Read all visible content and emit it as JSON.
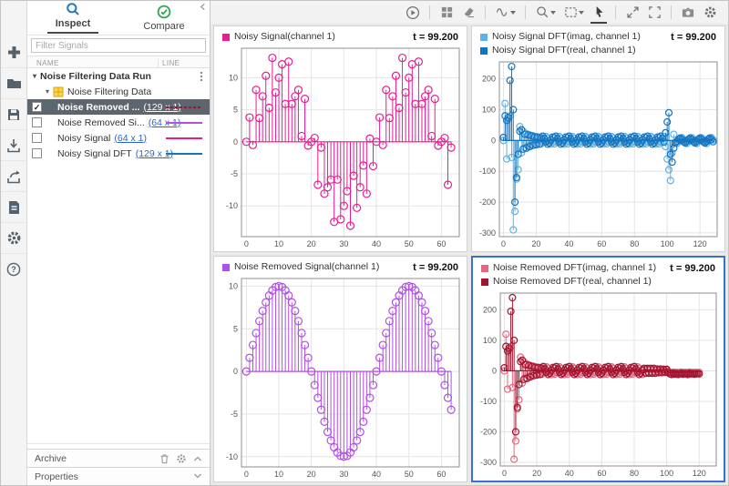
{
  "left_strip": {
    "icons": [
      "new",
      "open-folder",
      "save",
      "import",
      "export",
      "create-report",
      "preferences",
      "help"
    ]
  },
  "sidebar": {
    "tabs": [
      {
        "label": "Inspect",
        "icon": "magnifier",
        "active": true
      },
      {
        "label": "Compare",
        "icon": "check-circle",
        "active": false
      }
    ],
    "collapse_icon": "chevron-left",
    "filter_placeholder": "Filter Signals",
    "columns": [
      "NAME",
      "LINE"
    ],
    "run_label": "Noise Filtering Data Run",
    "group_label": "Noise Filtering Data",
    "signals": [
      {
        "name": "Noise Removed ...",
        "dims": "(129 x 1)",
        "check": "✓",
        "checked": true,
        "selected": true,
        "color": "#A2142F",
        "line_style": "dashed"
      },
      {
        "name": "Noise Removed Si...",
        "dims": "(64 x 1)",
        "check": "",
        "checked": false,
        "selected": false,
        "color": "#B24FE6",
        "line_style": "solid"
      },
      {
        "name": "Noisy Signal",
        "dims": "(64 x 1)",
        "check": "",
        "checked": false,
        "selected": false,
        "color": "#E81D92",
        "line_style": "solid"
      },
      {
        "name": "Noisy Signal DFT",
        "dims": "(129 x 1)",
        "check": "",
        "checked": false,
        "selected": false,
        "color": "#1674BE",
        "line_style": "solid"
      }
    ],
    "archive_label": "Archive",
    "archive_icons": [
      "trash",
      "gear",
      "chevron-up"
    ],
    "properties_label": "Properties",
    "properties_icon": "chevron-down"
  },
  "toolbar": {
    "icons": [
      "playback",
      "layout-grid",
      "clear-plots",
      "signal-style",
      "zoom",
      "fit-to-view",
      "pointer-tool",
      "pan-expand",
      "fullscreen",
      "snapshot-camera",
      "settings-gear"
    ],
    "active_icon": "pointer-tool"
  },
  "panels": [
    {
      "legend": [
        {
          "label": "Noisy Signal(channel 1)",
          "color": "#E81D92"
        }
      ],
      "t_label": "t = 99.200",
      "selected": false
    },
    {
      "legend": [
        {
          "label": "Noisy Signal DFT(imag, channel 1)",
          "color": "#5FB2E6"
        },
        {
          "label": "Noisy Signal DFT(real, channel 1)",
          "color": "#1674BE"
        }
      ],
      "t_label": "t = 99.200",
      "selected": false
    },
    {
      "legend": [
        {
          "label": "Noise Removed Signal(channel 1)",
          "color": "#B24FE6"
        }
      ],
      "t_label": "t = 99.200",
      "selected": false
    },
    {
      "legend": [
        {
          "label": "Noise Removed DFT(imag, channel 1)",
          "color": "#E16A80"
        },
        {
          "label": "Noise Removed DFT(real, channel 1)",
          "color": "#A2142F"
        }
      ],
      "t_label": "t = 99.200",
      "selected": true
    }
  ],
  "chart_data": [
    {
      "type": "stem",
      "svg_id": "plot-0",
      "title": "Noisy Signal(channel 1)",
      "x_range": [
        -1.5,
        65.5
      ],
      "y_range": [
        -14.8,
        14.6
      ],
      "x_ticks": [
        0,
        10,
        20,
        30,
        40,
        50,
        60
      ],
      "y_ticks": [
        -10,
        -5,
        0,
        5,
        10
      ],
      "marker_r": 4.0,
      "grid": true,
      "series": [
        {
          "name": "Noisy Signal(channel 1)",
          "color": "#E81D92",
          "values": [
            0,
            3.8,
            -0.5,
            8.1,
            3.7,
            7.1,
            10.3,
            5.3,
            13.1,
            7.7,
            10,
            12.1,
            5.9,
            12.5,
            5.9,
            7.1,
            8.1,
            0.9,
            6.7,
            -0.6,
            0,
            0.6,
            -6.7,
            -0.9,
            -8.1,
            -7.1,
            -5.9,
            -12.5,
            -5.9,
            -12.1,
            -10,
            -7.7,
            -13.1,
            -5.3,
            -10.3,
            -7.1,
            -3.7,
            -8.1,
            0.5,
            -3.8,
            0,
            3.8,
            -0.5,
            8.1,
            3.7,
            7.1,
            10.3,
            5.3,
            13.1,
            7.7,
            10,
            12.1,
            5.9,
            12.5,
            5.9,
            7.1,
            8.1,
            0.9,
            6.7,
            -0.6,
            0,
            0.6,
            -6.7,
            -0.9
          ]
        }
      ]
    },
    {
      "type": "stem",
      "svg_id": "plot-1",
      "title": "Noisy Signal DFT",
      "x_range": [
        -2.5,
        130.5
      ],
      "y_range": [
        -312,
        255
      ],
      "x_ticks": [
        0,
        20,
        40,
        60,
        80,
        100,
        120
      ],
      "y_ticks": [
        -300,
        -200,
        -100,
        0,
        100,
        200
      ],
      "marker_r": 3.5,
      "grid": true,
      "series": [
        {
          "name": "Noisy Signal DFT(imag, channel 1)",
          "color": "#5FB2E6",
          "values": [
            0,
            120,
            -60,
            70,
            80,
            -55,
            -290,
            -230,
            -125,
            -95,
            45,
            -40,
            30,
            -24,
            22,
            -18,
            18,
            -14,
            15,
            -12,
            12,
            -10,
            10,
            -11,
            -5,
            7,
            13,
            8,
            -3,
            -12,
            -7,
            -11,
            -5,
            7,
            13,
            8,
            -3,
            -12,
            -7,
            -11,
            -5,
            7,
            13,
            8,
            -3,
            -12,
            -7,
            -11,
            -5,
            7,
            13,
            8,
            -3,
            -12,
            -7,
            -11,
            -5,
            7,
            13,
            8,
            -3,
            -12,
            -7,
            -11,
            -5,
            7,
            13,
            8,
            -3,
            -12,
            -7,
            -11,
            -5,
            7,
            13,
            8,
            -3,
            -12,
            -7,
            -11,
            -5,
            7,
            13,
            8,
            -3,
            -12,
            -7,
            -11,
            -5,
            7,
            13,
            8,
            -3,
            -12,
            -7,
            -11,
            -5,
            7,
            13,
            -20,
            -60,
            -95,
            -130,
            -40,
            20,
            -5,
            -10,
            -2,
            5,
            9,
            2,
            -5,
            -10,
            -2,
            5,
            9,
            2,
            -5,
            -10,
            -2,
            5,
            9,
            2,
            -5,
            -10,
            -2,
            5,
            9,
            2
          ]
        },
        {
          "name": "Noisy Signal DFT(real, channel 1)",
          "color": "#1674BE",
          "values": [
            10,
            80,
            65,
            75,
            195,
            240,
            100,
            -200,
            -120,
            -45,
            30,
            35,
            -28,
            20,
            -25,
            18,
            -20,
            15,
            -16,
            12,
            -14,
            11,
            -12,
            9,
            14,
            6,
            -5,
            -12,
            -8,
            2,
            11,
            9,
            14,
            6,
            -5,
            -12,
            -8,
            2,
            11,
            9,
            14,
            6,
            -5,
            -12,
            -8,
            2,
            11,
            9,
            14,
            6,
            -5,
            -12,
            -8,
            2,
            11,
            9,
            14,
            6,
            -5,
            -12,
            -8,
            2,
            11,
            9,
            14,
            6,
            -5,
            -12,
            -8,
            2,
            11,
            9,
            14,
            6,
            -5,
            -12,
            -8,
            2,
            11,
            9,
            14,
            6,
            -5,
            -12,
            -8,
            2,
            11,
            9,
            14,
            6,
            -5,
            -12,
            -8,
            2,
            11,
            9,
            14,
            6,
            -5,
            25,
            60,
            90,
            -45,
            -70,
            -25,
            -8,
            -3,
            4,
            8,
            3,
            -4,
            -8,
            -3,
            4,
            8,
            3,
            -4,
            -8,
            -3,
            4,
            8,
            3,
            -4,
            -8,
            -3,
            4,
            8,
            3,
            -4
          ]
        }
      ]
    },
    {
      "type": "stem",
      "svg_id": "plot-2",
      "title": "Noise Removed Signal(channel 1)",
      "x_range": [
        -1.5,
        65.5
      ],
      "y_range": [
        -11.2,
        10.9
      ],
      "x_ticks": [
        0,
        10,
        20,
        30,
        40,
        50,
        60
      ],
      "y_ticks": [
        -10,
        -5,
        0,
        5,
        10
      ],
      "marker_r": 4.0,
      "grid": true,
      "series": [
        {
          "name": "Noise Removed Signal(channel 1)",
          "color": "#B24FE6",
          "values": [
            0,
            1.6,
            3.1,
            4.5,
            5.9,
            7.1,
            8.1,
            8.9,
            9.5,
            9.9,
            10,
            9.9,
            9.5,
            8.9,
            8.1,
            7.1,
            5.9,
            4.5,
            3.1,
            1.6,
            0,
            -1.6,
            -3.1,
            -4.5,
            -5.9,
            -7.1,
            -8.1,
            -8.9,
            -9.5,
            -9.9,
            -10,
            -9.9,
            -9.5,
            -8.9,
            -8.1,
            -7.1,
            -5.9,
            -4.5,
            -3.1,
            -1.6,
            0,
            1.6,
            3.1,
            4.5,
            5.9,
            7.1,
            8.1,
            8.9,
            9.5,
            9.9,
            10,
            9.9,
            9.5,
            8.9,
            8.1,
            7.1,
            5.9,
            4.5,
            3.1,
            1.6,
            0,
            -1.6,
            -3.1,
            -4.5
          ]
        }
      ]
    },
    {
      "type": "stem",
      "svg_id": "plot-3",
      "title": "Noise Removed DFT",
      "x_range": [
        -2.5,
        130.5
      ],
      "y_range": [
        -312,
        255
      ],
      "x_ticks": [
        0,
        20,
        40,
        60,
        80,
        100,
        120
      ],
      "y_ticks": [
        -300,
        -200,
        -100,
        0,
        100,
        200
      ],
      "marker_r": 3.5,
      "grid": true,
      "series": [
        {
          "name": "Noise Removed DFT(imag, channel 1)",
          "color": "#E16A80",
          "values": [
            0,
            120,
            -60,
            70,
            80,
            -55,
            -290,
            -230,
            -125,
            -95,
            45,
            -40,
            30,
            -24,
            22,
            -18,
            18,
            -14,
            15,
            -12,
            12,
            -10,
            10,
            -11,
            -5,
            7,
            13,
            8,
            -3,
            -12,
            -7,
            -11,
            -5,
            7,
            13,
            8,
            -3,
            -12,
            -7,
            -11,
            -5,
            7,
            13,
            8,
            -3,
            -12,
            -7,
            -11,
            -5,
            7,
            13,
            8,
            -3,
            -12,
            -7,
            -11,
            -5,
            7,
            13,
            8,
            -3,
            -12,
            -7,
            -11,
            -5,
            7,
            13,
            8,
            -3,
            -12,
            -7,
            -11,
            -5,
            7,
            13,
            8,
            -3,
            -12,
            -7,
            -11,
            -5,
            7,
            13,
            8,
            -3,
            -12,
            5,
            -5,
            5,
            -5,
            4,
            -4,
            4,
            -4,
            3,
            -3,
            3,
            -3,
            2,
            -2,
            2,
            -2,
            -5,
            -7,
            -4,
            -6,
            -5,
            -7,
            -5,
            -4,
            -6,
            -5,
            -5,
            -7,
            -4,
            -5,
            -6,
            -5,
            -5,
            -6,
            -5
          ]
        },
        {
          "name": "Noise Removed DFT(real, channel 1)",
          "color": "#A2142F",
          "values": [
            10,
            80,
            65,
            75,
            195,
            240,
            100,
            -200,
            -120,
            -45,
            30,
            35,
            -28,
            20,
            -25,
            18,
            -20,
            15,
            -16,
            12,
            -14,
            11,
            -12,
            9,
            14,
            6,
            -5,
            -12,
            -8,
            2,
            11,
            9,
            14,
            6,
            -5,
            -12,
            -8,
            2,
            11,
            9,
            14,
            6,
            -5,
            -12,
            -8,
            2,
            11,
            9,
            14,
            6,
            -5,
            -12,
            -8,
            2,
            11,
            9,
            14,
            6,
            -5,
            -12,
            -8,
            2,
            11,
            9,
            14,
            6,
            -5,
            -12,
            -8,
            2,
            11,
            9,
            14,
            6,
            -5,
            -12,
            -8,
            2,
            11,
            9,
            14,
            6,
            -5,
            -12,
            -8,
            2,
            8,
            -8,
            8,
            -8,
            8,
            -8,
            8,
            -8,
            6,
            -6,
            6,
            -6,
            5,
            -5,
            5,
            -5,
            -10,
            -12,
            -8,
            -11,
            -9,
            -12,
            -10,
            -8,
            -11,
            -9,
            -10,
            -12,
            -8,
            -10,
            -9,
            -11,
            -10,
            -9,
            -10
          ]
        }
      ]
    }
  ]
}
